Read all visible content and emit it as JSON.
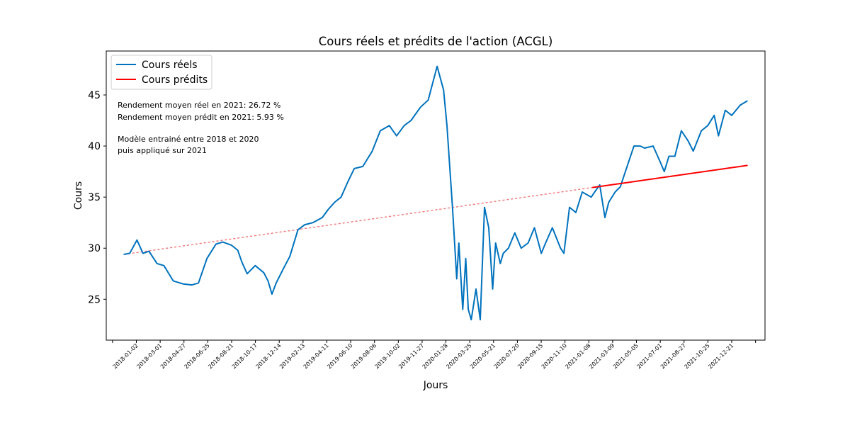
{
  "chart_data": {
    "type": "line",
    "title": "Cours réels et prédits de l'action (ACGL)",
    "xlabel": "Jours",
    "ylabel": "Cours",
    "x_tick_labels": [
      "2018-01-02",
      "2018-03-01",
      "2018-04-27",
      "2018-06-25",
      "2018-08-21",
      "2018-10-17",
      "2018-12-14",
      "2019-02-13",
      "2019-04-11",
      "2019-06-10",
      "2019-08-06",
      "2019-10-02",
      "2019-11-27",
      "2020-01-28",
      "2020-03-25",
      "2020-05-21",
      "2020-07-20",
      "2020-09-15",
      "2020-11-10",
      "2021-01-08",
      "2021-03-09",
      "2021-05-05",
      "2021-07-01",
      "2021-08-27",
      "2021-10-25",
      "2021-12-21"
    ],
    "y_ticks": [
      25,
      30,
      35,
      40,
      45
    ],
    "ylim": [
      21,
      49.3
    ],
    "grid": false,
    "legend_position": "top-left",
    "colors": {
      "actual": "#0072bd",
      "predicted": "#ff0000",
      "fit": "#f08080"
    },
    "annotations": [
      "Rendement moyen réel en 2021: 26.72 %",
      "Rendement moyen prédit en 2021: 5.93 %",
      "Modèle entrainé entre 2018 et 2020",
      "puis appliqué sur 2021"
    ],
    "series": [
      {
        "name": "Cours réels",
        "style": "solid",
        "x": [
          "2018-01-02",
          "2018-01-15",
          "2018-02-01",
          "2018-02-15",
          "2018-03-01",
          "2018-03-20",
          "2018-04-05",
          "2018-04-27",
          "2018-05-20",
          "2018-06-10",
          "2018-06-25",
          "2018-07-15",
          "2018-08-05",
          "2018-08-21",
          "2018-09-10",
          "2018-09-25",
          "2018-10-05",
          "2018-10-17",
          "2018-11-05",
          "2018-11-25",
          "2018-12-05",
          "2018-12-14",
          "2018-12-24",
          "2019-01-10",
          "2019-01-25",
          "2019-02-13",
          "2019-03-01",
          "2019-03-20",
          "2019-04-11",
          "2019-04-25",
          "2019-05-10",
          "2019-05-25",
          "2019-06-10",
          "2019-06-25",
          "2019-07-15",
          "2019-08-06",
          "2019-08-25",
          "2019-09-15",
          "2019-10-02",
          "2019-10-20",
          "2019-11-05",
          "2019-11-27",
          "2019-12-15",
          "2020-01-05",
          "2020-01-20",
          "2020-01-28",
          "2020-02-10",
          "2020-02-20",
          "2020-02-25",
          "2020-03-05",
          "2020-03-12",
          "2020-03-18",
          "2020-03-25",
          "2020-04-05",
          "2020-04-15",
          "2020-04-25",
          "2020-05-05",
          "2020-05-14",
          "2020-05-21",
          "2020-06-01",
          "2020-06-08",
          "2020-06-20",
          "2020-07-05",
          "2020-07-20",
          "2020-08-05",
          "2020-08-20",
          "2020-09-05",
          "2020-09-15",
          "2020-10-01",
          "2020-10-20",
          "2020-10-28",
          "2020-11-10",
          "2020-11-25",
          "2020-12-10",
          "2020-12-31",
          "2021-01-08",
          "2021-01-20",
          "2021-02-01",
          "2021-02-10",
          "2021-02-25",
          "2021-03-09",
          "2021-03-25",
          "2021-04-10",
          "2021-04-25",
          "2021-05-05",
          "2021-05-25",
          "2021-06-10",
          "2021-06-20",
          "2021-07-01",
          "2021-07-15",
          "2021-07-30",
          "2021-08-15",
          "2021-08-27",
          "2021-09-15",
          "2021-09-30",
          "2021-10-15",
          "2021-10-25",
          "2021-11-10",
          "2021-11-25",
          "2021-12-05",
          "2021-12-15",
          "2021-12-31"
        ],
        "values": [
          29.4,
          29.5,
          30.8,
          29.5,
          29.7,
          28.5,
          28.3,
          26.8,
          26.5,
          26.4,
          26.6,
          29.0,
          30.4,
          30.6,
          30.3,
          29.8,
          28.6,
          27.5,
          28.3,
          27.6,
          26.8,
          25.5,
          26.6,
          28.0,
          29.2,
          31.8,
          32.3,
          32.5,
          33.0,
          33.8,
          34.5,
          35.0,
          36.5,
          37.8,
          38.0,
          39.5,
          41.5,
          42.0,
          41.0,
          42.0,
          42.5,
          43.8,
          44.5,
          47.8,
          45.5,
          42.0,
          34.0,
          27.0,
          30.5,
          24.0,
          29.0,
          24.0,
          23.0,
          26.0,
          23.0,
          34.0,
          32.0,
          26.0,
          30.5,
          28.5,
          29.5,
          30.0,
          31.5,
          30.0,
          30.5,
          32.0,
          29.5,
          30.5,
          32.0,
          30.0,
          29.5,
          34.0,
          33.5,
          35.5,
          35.0,
          35.5,
          36.2,
          33.0,
          34.5,
          35.5,
          36.0,
          38.0,
          40.0,
          40.0,
          39.8,
          40.0,
          38.5,
          37.5,
          39.0,
          39.0,
          41.5,
          40.5,
          39.5,
          41.5,
          42.0,
          43.0,
          41.0,
          43.5,
          43.0,
          43.5,
          44.0,
          44.4
        ]
      },
      {
        "name": "Cours prédits",
        "style": "solid",
        "x": [
          "2021-01-04",
          "2021-12-31"
        ],
        "values": [
          35.95,
          38.1
        ]
      },
      {
        "style": "dotted",
        "x": [
          "2018-01-02",
          "2021-01-04"
        ],
        "values": [
          29.4,
          35.95
        ]
      }
    ]
  }
}
